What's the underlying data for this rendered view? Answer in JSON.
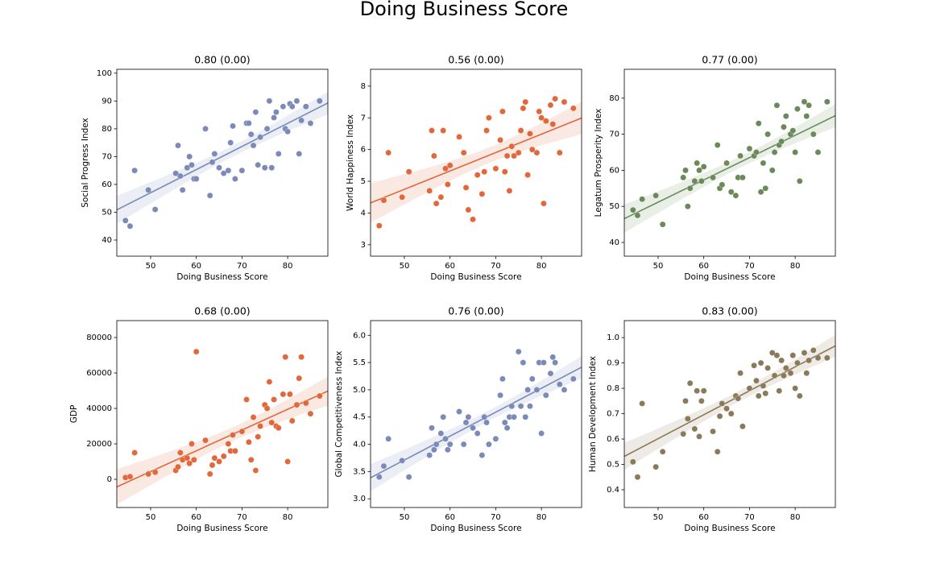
{
  "title": "Doing Business Score",
  "chart_data": [
    {
      "type": "scatter",
      "title": "0.80 (0.00)",
      "xlabel": "Doing Business Score",
      "ylabel": "Social Progress Index",
      "color": "#7b8ab8",
      "fit_line": true,
      "xlim": [
        42.6,
        88.8
      ],
      "xticks": [
        50,
        60,
        70,
        80
      ],
      "ylim": [
        34.2,
        101.4
      ],
      "yticks": [
        40,
        50,
        60,
        70,
        80,
        90,
        100
      ],
      "x": [
        44.5,
        45.5,
        46.5,
        49.5,
        51,
        55.5,
        56,
        56.5,
        57,
        58,
        58.5,
        59,
        59.5,
        60,
        62,
        63,
        63.5,
        64,
        65,
        66,
        67,
        67.5,
        68,
        68.5,
        70,
        71,
        71.5,
        72,
        72.5,
        73,
        73.5,
        74,
        75,
        75.5,
        76,
        76.5,
        77,
        77.5,
        78,
        79,
        79.5,
        80,
        80.5,
        81,
        82,
        82.5,
        83,
        84,
        85,
        87
      ],
      "values": [
        47,
        45,
        65,
        58,
        51,
        64,
        74,
        63,
        58,
        66,
        70,
        67,
        62,
        62,
        80,
        56,
        68,
        71,
        66,
        64,
        65,
        75,
        81,
        62,
        65,
        82,
        82,
        78,
        74,
        86,
        67,
        77,
        66,
        80,
        90,
        66,
        84,
        86,
        71,
        88,
        80,
        79,
        89,
        88,
        90,
        71,
        83,
        88,
        82,
        90
      ]
    },
    {
      "type": "scatter",
      "title": "0.56 (0.00)",
      "xlabel": "Doing Business Score",
      "ylabel": "World Happiness Index",
      "color": "#e0683a",
      "fit_line": true,
      "xlim": [
        42.6,
        88.8
      ],
      "xticks": [
        50,
        60,
        70,
        80
      ],
      "ylim": [
        2.64,
        8.53
      ],
      "yticks": [
        3,
        4,
        5,
        6,
        7,
        8
      ],
      "x": [
        44.5,
        45.5,
        46.5,
        49.5,
        51,
        55.5,
        56,
        56.5,
        57,
        58,
        58.5,
        59,
        59.5,
        60,
        62,
        63,
        63.5,
        64,
        65,
        66,
        67,
        67.5,
        68,
        68.5,
        70,
        71,
        71.5,
        72,
        72.5,
        73,
        73.5,
        74,
        75,
        75.5,
        76,
        76.5,
        77,
        77.5,
        78,
        79,
        79.5,
        80,
        80.5,
        81,
        82,
        82.5,
        83,
        84,
        85,
        87
      ],
      "values": [
        3.6,
        4.4,
        5.9,
        4.5,
        5.3,
        4.7,
        6.6,
        5.8,
        4.3,
        4.5,
        6.6,
        5.4,
        4.9,
        5.5,
        6.4,
        5.9,
        4.8,
        4.1,
        3.8,
        5.2,
        4.6,
        5.3,
        6.6,
        7.0,
        5.4,
        6.3,
        7.2,
        5.3,
        5.8,
        4.7,
        6.1,
        5.8,
        5.9,
        6.6,
        7.3,
        7.5,
        5.2,
        6.5,
        6.0,
        5.9,
        7.2,
        7.0,
        4.3,
        6.9,
        7.4,
        6.8,
        7.6,
        5.9,
        7.5,
        7.3
      ]
    },
    {
      "type": "scatter",
      "title": "0.77 (0.00)",
      "xlabel": "Doing Business Score",
      "ylabel": "Legatum Prosperity Index",
      "color": "#6b8a5a",
      "fit_line": true,
      "xlim": [
        42.6,
        88.8
      ],
      "xticks": [
        50,
        60,
        70,
        80
      ],
      "ylim": [
        36.2,
        88.0
      ],
      "yticks": [
        40,
        50,
        60,
        70,
        80
      ],
      "x": [
        44.5,
        45.5,
        46.5,
        49.5,
        51,
        55.5,
        56,
        56.5,
        57,
        58,
        58.5,
        59,
        59.5,
        60,
        62,
        63,
        63.5,
        64,
        65,
        66,
        67,
        67.5,
        68,
        68.5,
        70,
        71,
        71.5,
        72,
        72.5,
        73,
        73.5,
        74,
        75,
        75.5,
        76,
        76.5,
        77,
        77.5,
        78,
        79,
        79.5,
        80,
        80.5,
        81,
        82,
        82.5,
        83,
        84,
        85,
        87
      ],
      "values": [
        49,
        47.5,
        52,
        53,
        45,
        58,
        60,
        50,
        55,
        57,
        62,
        60,
        57,
        61,
        58,
        67,
        55,
        56,
        62,
        54,
        53,
        58,
        64,
        58,
        66,
        64,
        65,
        73,
        54,
        62,
        55,
        70,
        60,
        65,
        78,
        67,
        68,
        72,
        75,
        70,
        71,
        65,
        77,
        57,
        79,
        75,
        78,
        70,
        65,
        79
      ]
    },
    {
      "type": "scatter",
      "title": "0.68 (0.00)",
      "xlabel": "Doing Business Score",
      "ylabel": "GDP",
      "color": "#e0683a",
      "fit_line": true,
      "xlim": [
        42.6,
        88.8
      ],
      "xticks": [
        50,
        60,
        70,
        80
      ],
      "ylim": [
        -15909,
        89545
      ],
      "yticks": [
        0,
        20000,
        40000,
        60000,
        80000
      ],
      "x": [
        44.5,
        45.5,
        46.5,
        49.5,
        51,
        55.5,
        56,
        56.5,
        57,
        58,
        58.5,
        59,
        59.5,
        60,
        62,
        63,
        63.5,
        64,
        65,
        66,
        67,
        67.5,
        68,
        68.5,
        70,
        71,
        71.5,
        72,
        72.5,
        73,
        73.5,
        74,
        75,
        75.5,
        76,
        76.5,
        77,
        77.5,
        78,
        79,
        79.5,
        80,
        80.5,
        81,
        82,
        82.5,
        83,
        84,
        85,
        87
      ],
      "values": [
        1000,
        1500,
        15000,
        3000,
        4000,
        5000,
        7000,
        15000,
        11000,
        12000,
        9000,
        20000,
        11000,
        72000,
        22000,
        3000,
        8000,
        12000,
        10000,
        13000,
        20000,
        16000,
        25000,
        16000,
        27000,
        45000,
        21000,
        11000,
        35000,
        5000,
        24000,
        30000,
        42000,
        40000,
        55000,
        32000,
        45000,
        30000,
        29000,
        48000,
        69000,
        10000,
        48000,
        33000,
        42000,
        57000,
        69000,
        43000,
        37000,
        47000
      ]
    },
    {
      "type": "scatter",
      "title": "0.76 (0.00)",
      "xlabel": "Doing Business Score",
      "ylabel": "Global Competitiveness Index",
      "color": "#7b8ab8",
      "fit_line": true,
      "xlim": [
        42.6,
        88.8
      ],
      "xticks": [
        50,
        60,
        70,
        80
      ],
      "ylim": [
        2.84,
        6.27
      ],
      "yticks": [
        {
          "value": 3,
          "label": "3.0"
        },
        3.5,
        {
          "value": 4,
          "label": "4.0"
        },
        4.5,
        {
          "value": 5,
          "label": "5.0"
        },
        5.5,
        {
          "value": 6,
          "label": "6.0"
        }
      ],
      "x": [
        44.5,
        45.5,
        46.5,
        49.5,
        51,
        55.5,
        56,
        56.5,
        57,
        58,
        58.5,
        59,
        59.5,
        60,
        62,
        63,
        63.5,
        64,
        65,
        66,
        67,
        67.5,
        68,
        68.5,
        70,
        71,
        71.5,
        72,
        72.5,
        73,
        73.5,
        74,
        75,
        75.5,
        76,
        76.5,
        77,
        77.5,
        78,
        79,
        79.5,
        80,
        80.5,
        81,
        82,
        82.5,
        83,
        84,
        85,
        87
      ],
      "values": [
        3.4,
        3.6,
        4.1,
        3.7,
        3.4,
        3.8,
        4.3,
        3.9,
        4.0,
        4.2,
        4.5,
        4.1,
        3.9,
        4.0,
        4.6,
        4.0,
        4.4,
        4.5,
        4.3,
        4.2,
        3.8,
        4.5,
        4.4,
        4.0,
        4.1,
        4.9,
        5.2,
        4.4,
        4.3,
        4.5,
        4.7,
        4.5,
        5.7,
        4.7,
        5.5,
        4.5,
        5.0,
        4.7,
        5.2,
        5.0,
        5.5,
        4.2,
        5.5,
        4.9,
        5.3,
        5.6,
        5.5,
        5.1,
        5.0,
        5.2
      ]
    },
    {
      "type": "scatter",
      "title": "0.83 (0.00)",
      "xlabel": "Doing Business Score",
      "ylabel": "Human Development Index",
      "color": "#8b7a5a",
      "fit_line": true,
      "xlim": [
        42.6,
        88.8
      ],
      "xticks": [
        50,
        60,
        70,
        80
      ],
      "ylim": [
        0.33,
        1.067
      ],
      "yticks": [
        0.4,
        0.5,
        0.6,
        0.7,
        0.8,
        0.9,
        {
          "value": 1,
          "label": "1.0"
        }
      ],
      "x": [
        44.5,
        45.5,
        46.5,
        49.5,
        51,
        55.5,
        56,
        56.5,
        57,
        58,
        58.5,
        59,
        59.5,
        60,
        62,
        63,
        63.5,
        64,
        65,
        66,
        67,
        67.5,
        68,
        68.5,
        70,
        71,
        71.5,
        72,
        72.5,
        73,
        73.5,
        74,
        75,
        75.5,
        76,
        76.5,
        77,
        77.5,
        78,
        79,
        79.5,
        80,
        80.5,
        81,
        82,
        82.5,
        83,
        84,
        85,
        87
      ],
      "values": [
        0.51,
        0.45,
        0.74,
        0.49,
        0.55,
        0.62,
        0.75,
        0.68,
        0.82,
        0.64,
        0.79,
        0.61,
        0.75,
        0.79,
        0.63,
        0.55,
        0.69,
        0.74,
        0.72,
        0.7,
        0.77,
        0.76,
        0.86,
        0.65,
        0.8,
        0.89,
        0.83,
        0.77,
        0.9,
        0.81,
        0.78,
        0.88,
        0.94,
        0.85,
        0.93,
        0.79,
        0.91,
        0.85,
        0.88,
        0.86,
        0.93,
        0.8,
        0.9,
        0.77,
        0.94,
        0.86,
        0.91,
        0.95,
        0.92,
        0.92
      ]
    }
  ]
}
